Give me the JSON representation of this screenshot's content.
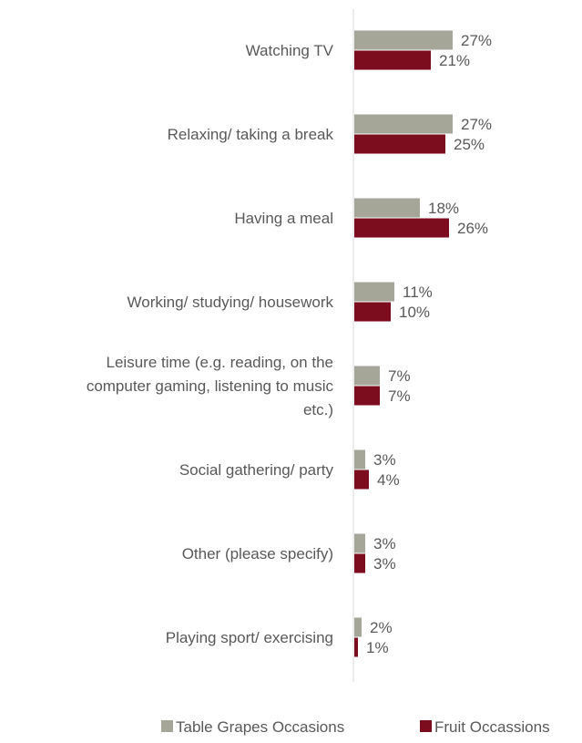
{
  "chart_data": {
    "type": "bar",
    "orientation": "horizontal",
    "categories": [
      [
        "Watching TV"
      ],
      [
        "Relaxing/ taking a break"
      ],
      [
        "Having a meal"
      ],
      [
        "Working/ studying/ housework"
      ],
      [
        "Leisure time (e.g. reading, on the",
        "computer gaming, listening to music",
        "etc.)"
      ],
      [
        "Social gathering/ party"
      ],
      [
        "Other (please specify)"
      ],
      [
        "Playing sport/ exercising"
      ]
    ],
    "series": [
      {
        "name": "Table Grapes Occasions",
        "color": "#a6a698",
        "values": [
          27,
          27,
          18,
          11,
          7,
          3,
          3,
          2
        ]
      },
      {
        "name": "Fruit Occassions",
        "color": "#7b0d1e",
        "values": [
          21,
          25,
          26,
          10,
          7,
          4,
          3,
          1
        ]
      }
    ],
    "value_suffix": "%",
    "xlim": [
      0,
      27
    ],
    "grid": false,
    "legend_position": "bottom"
  }
}
